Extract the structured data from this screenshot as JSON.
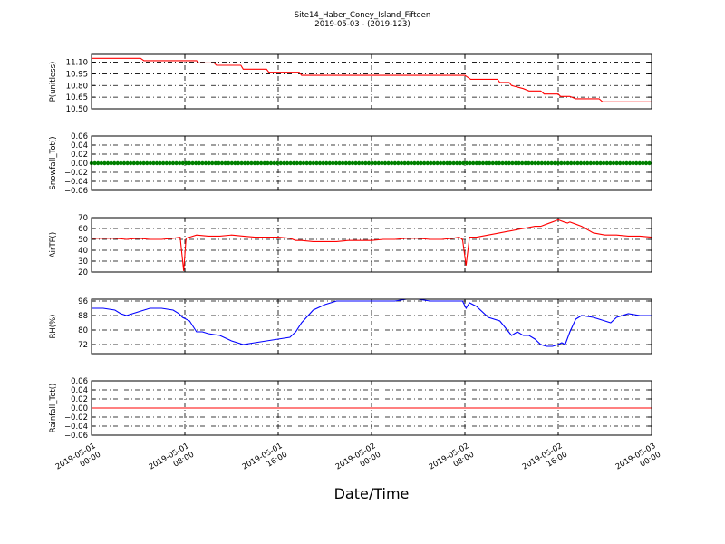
{
  "figure": {
    "title": "Site14_Haber_Coney_Island_Fifteen",
    "subtitle": "2019-05-03 - (2019-123)",
    "xlabel": "Date/Time"
  },
  "x_axis": {
    "ticks": [
      {
        "x": 0,
        "line1": "2019-05-01",
        "line2": "00:00"
      },
      {
        "x": 8,
        "line1": "2019-05-01",
        "line2": "08:00"
      },
      {
        "x": 16,
        "line1": "2019-05-01",
        "line2": "16:00"
      },
      {
        "x": 24,
        "line1": "2019-05-02",
        "line2": "00:00"
      },
      {
        "x": 32,
        "line1": "2019-05-02",
        "line2": "08:00"
      },
      {
        "x": 40,
        "line1": "2019-05-02",
        "line2": "16:00"
      },
      {
        "x": 48,
        "line1": "2019-05-03",
        "line2": "00:00"
      }
    ]
  },
  "chart_data": [
    {
      "type": "line",
      "ylabel": "P(unitless)",
      "ylim": [
        10.5,
        11.2
      ],
      "yticks": [
        "11.10",
        "10.95",
        "10.80",
        "10.65",
        "10.50"
      ],
      "ytick_values": [
        11.1,
        10.95,
        10.8,
        10.65,
        10.5
      ],
      "grid": true,
      "color": "#ff0000",
      "x": [
        0,
        4.2,
        4.5,
        8,
        9,
        9.2,
        10.5,
        10.7,
        12.8,
        13,
        15,
        15.2,
        17.8,
        18,
        32,
        32.5,
        34.8,
        35,
        35.8,
        36,
        37,
        37.5,
        38.5,
        38.8,
        40,
        40.2,
        41,
        41.5,
        43.5,
        43.8,
        48
      ],
      "y": [
        11.15,
        11.15,
        11.12,
        11.12,
        11.12,
        11.09,
        11.09,
        11.06,
        11.06,
        11.01,
        11.01,
        10.97,
        10.97,
        10.93,
        10.93,
        10.88,
        10.88,
        10.84,
        10.84,
        10.8,
        10.76,
        10.73,
        10.73,
        10.69,
        10.69,
        10.66,
        10.66,
        10.63,
        10.63,
        10.59,
        10.59
      ]
    },
    {
      "type": "line",
      "ylabel": "Snowfall_Tot()",
      "ylim": [
        -0.06,
        0.06
      ],
      "yticks": [
        "0.06",
        "0.04",
        "0.02",
        "0.00",
        "−0.02",
        "−0.04",
        "−0.06"
      ],
      "ytick_values": [
        0.06,
        0.04,
        0.02,
        0.0,
        -0.02,
        -0.04,
        -0.06
      ],
      "grid": true,
      "color": "#008000",
      "markers": true,
      "x": [
        0,
        48
      ],
      "y": [
        0,
        0
      ]
    },
    {
      "type": "line",
      "ylabel": "AirTF()",
      "ylim": [
        20,
        70
      ],
      "yticks": [
        "70",
        "60",
        "50",
        "40",
        "30",
        "20"
      ],
      "ytick_values": [
        70,
        60,
        50,
        40,
        30,
        20
      ],
      "grid": true,
      "color": "#ff0000",
      "x": [
        0,
        1,
        2,
        3,
        4,
        5,
        6,
        7,
        7.6,
        7.9,
        8.1,
        8.4,
        9,
        10,
        11,
        12,
        13,
        14,
        15,
        16,
        17,
        17.5,
        18,
        19,
        20,
        21,
        22,
        23,
        24,
        25,
        26,
        27,
        28,
        29,
        30,
        31,
        31.5,
        31.8,
        32.1,
        32.4,
        33,
        34,
        35,
        35.5,
        36,
        37,
        37.5,
        38,
        38.5,
        39,
        39.5,
        40,
        40.5,
        40.8,
        41,
        41.5,
        42,
        43,
        44,
        45,
        46,
        47,
        48
      ],
      "y": [
        51,
        51,
        51,
        50,
        51,
        50,
        50,
        51,
        52,
        21,
        51,
        52,
        54,
        53,
        53,
        54,
        53,
        52,
        52,
        52,
        51,
        49,
        49,
        48,
        48,
        48,
        49,
        49,
        49,
        50,
        50,
        51,
        51,
        50,
        50,
        51,
        52,
        50,
        26,
        52,
        52,
        54,
        56,
        57,
        58,
        60,
        61,
        62,
        62,
        64,
        66,
        68,
        66,
        65,
        66,
        64,
        62,
        56,
        54,
        54,
        53,
        53,
        52
      ],
      "series_note_values": []
    },
    {
      "type": "line",
      "ylabel": "RH(%)",
      "ylim": [
        67,
        97
      ],
      "yticks": [
        "96",
        "88",
        "80",
        "72"
      ],
      "ytick_values": [
        96,
        88,
        80,
        72
      ],
      "grid": true,
      "color": "#0000ff",
      "x": [
        0,
        1,
        2,
        2.5,
        3,
        3.5,
        4,
        5,
        6,
        7,
        7.5,
        7.8,
        8.1,
        8.4,
        9,
        9.5,
        10,
        11,
        12,
        13,
        14,
        15,
        16,
        17,
        17.5,
        18,
        19,
        20,
        21,
        22,
        23,
        24,
        25,
        26,
        27,
        28,
        29,
        30,
        31,
        31.5,
        31.8,
        32.1,
        32.4,
        33,
        34,
        35,
        36,
        36.5,
        37,
        37.5,
        38,
        38.5,
        39,
        39.5,
        40,
        40.3,
        40.6,
        41,
        41.5,
        42,
        43,
        43.5,
        44,
        44.5,
        45,
        46,
        47,
        48
      ],
      "y": [
        92,
        92,
        91,
        89,
        88,
        89,
        90,
        92,
        92,
        91,
        89,
        87,
        86,
        85,
        79,
        79,
        78,
        77,
        74,
        72,
        73,
        74,
        75,
        76,
        79,
        84,
        91,
        94,
        96,
        96,
        96,
        96,
        96,
        96,
        97,
        97,
        96,
        96,
        96,
        96,
        96,
        92,
        95,
        93,
        87,
        85,
        77,
        79,
        77,
        77,
        75,
        72,
        71,
        71,
        72,
        73,
        72,
        79,
        86,
        88,
        87,
        86,
        85,
        84,
        87,
        89,
        88,
        88
      ]
    },
    {
      "type": "line",
      "ylabel": "Rainfall_Tot()",
      "ylim": [
        -0.06,
        0.06
      ],
      "yticks": [
        "0.06",
        "0.04",
        "0.02",
        "0.00",
        "−0.02",
        "−0.04",
        "−0.06"
      ],
      "ytick_values": [
        0.06,
        0.04,
        0.02,
        0.0,
        -0.02,
        -0.04,
        -0.06
      ],
      "grid": true,
      "color": "#ff0000",
      "x": [
        0,
        48
      ],
      "y": [
        0,
        0
      ]
    }
  ]
}
